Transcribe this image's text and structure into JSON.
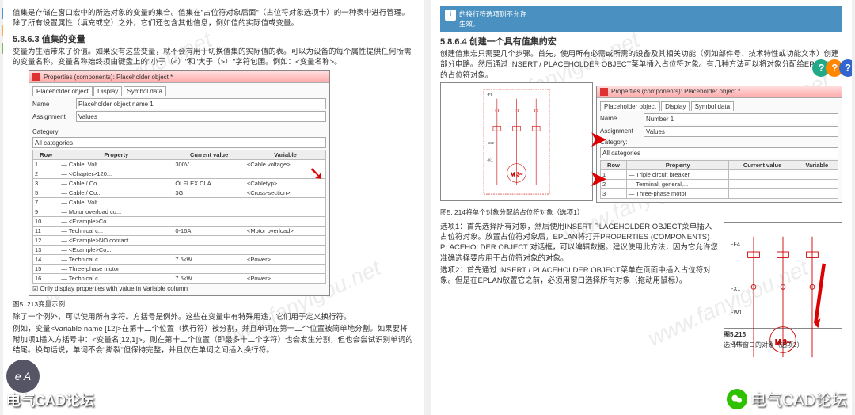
{
  "left": {
    "intro": "值集是存储在窗口宏中的所选对象的变量的集合。值集在\"占位符对象后面\"（占位符对象选项卡）的一种表中进行管理。除了所有设置属性（填充或空）之外，它们还包含其他信息，例如值的实际值或变量。",
    "h1": "5.8.6.3 值集的变量",
    "p1": "变量为生活带来了价值。如果没有这些变量，就不会有用于切换值集的实际值的表。可以为设备的每个属性提供任何所需的变量名称。变量名称始终须由键盘上的\"小于（<）\"和\"大于（>）\"字符包围。例如：<变量名称>。",
    "dlg": {
      "title": "Properties (components): Placeholder object *",
      "tabs": [
        "Placeholder object",
        "Display",
        "Symbol data"
      ],
      "nameLabel": "Name",
      "nameVal": "Placeholder object name 1",
      "assignLabel": "Assignment",
      "assignVal": "Values",
      "catLabel": "Category:",
      "catVal": "All categories",
      "cols": [
        "Row",
        "Property",
        "Current value",
        "Variable"
      ],
      "rows": [
        [
          "1",
          "— Cable: Volt...",
          "300V",
          "<Cable voltage>"
        ],
        [
          "2",
          "— <Chapter>120...",
          "",
          ""
        ],
        [
          "3",
          "— Cable / Co...",
          "ÖLFLEX CLA...",
          "<Cabletyp>"
        ],
        [
          "5",
          "— Cable / Co...",
          "3G",
          "<Cross-section>"
        ],
        [
          "7",
          "— Cable: Volt...",
          "",
          ""
        ],
        [
          "9",
          "— Motor overload cu...",
          "",
          ""
        ],
        [
          "10",
          "— <Example>Co...",
          "",
          ""
        ],
        [
          "11",
          "— Technical c...",
          "0-16A",
          "<Motor overload>"
        ],
        [
          "12",
          "— <Example>NO contact",
          "",
          ""
        ],
        [
          "13",
          "— <Example>Co...",
          "",
          ""
        ],
        [
          "14",
          "— Technical c...",
          "7.5kW",
          "<Power>"
        ],
        [
          "15",
          "— Three-phase motor",
          "",
          ""
        ],
        [
          "16",
          "— Technical c...",
          "7.5kW",
          "<Power>"
        ]
      ],
      "chk": "Only display properties with value in Variable column"
    },
    "cap1": "图5. 213变量示例",
    "p2": "除了一个例外，可以使用所有字符。方括号是例外。这些在变量中有特殊用途，它们用于定义换行符。",
    "p3": "例如，变量<Variable name [12]>在第十二个位置（换行符）被分割，并且单词在第十二个位置被简单地分割。如果要将附加项1插入方括号中：<变量名[12,1]>，则在第十二个位置（即最多十二个字符）也会发生分割，但也会尝试识别单词的结尾。换句话说，单词不会\"撕裂\"但保持完整，并且仅在单词之间插入换行符。"
  },
  "right": {
    "info": "的换行符选项则不允许\n生效。",
    "h1": "5.8.6.4 创建一个具有值集的宏",
    "p1": "创建值集宏只需要几个步骤。首先，使用所有必需或所需的设备及其相关功能（例如部件号、技术特性或功能文本）创建部分电路。然后通过 INSERT / PLACEHOLDER OBJECT菜单插入占位符对象。有几种方法可以将对象分配给EPLAN中的占位符对象。",
    "dlg": {
      "title": "Properties (components): Placeholder object *",
      "tabs": [
        "Placeholder object",
        "Display",
        "Symbol data"
      ],
      "nameLabel": "Name",
      "nameVal": "Number 1",
      "assignLabel": "Assignment",
      "assignVal": "Values",
      "catLabel": "Category:",
      "catVal": "All categories",
      "cols": [
        "Row",
        "Property",
        "Current value",
        "Variable"
      ],
      "rows": [
        [
          "1",
          "— Triple circuit breaker",
          "",
          ""
        ],
        [
          "2",
          "— Terminal, general,...",
          "",
          ""
        ],
        [
          "3",
          "— Three-phase motor",
          "",
          ""
        ]
      ]
    },
    "cap1": "图5. 214将单个对象分配给占位符对象（选项1）",
    "opt1": "选项1：首先选择所有对象，然后使用INSERT PLACEHOLDER OBJECT菜单插入占位符对象。放置占位符对象后，EPLAN将打开PROPERTIES (COMPONENTS) PLACEHOLDER OBJECT 对话框，可以编辑数据。建议使用此方法，因为它允许您准确选择要应用于占位符对象的对象。",
    "opt2": "选项2：首先通过 INSERT / PLACEHOLDER OBJECT菜单在页面中插入占位符对象。但是在EPLAN放置它之前，必须用窗口选择所有对象（拖动用鼠标）。",
    "figRight": {
      "cap": "图5.215",
      "sub": "选择带窗口的对象（选项2）"
    }
  },
  "watermark": "www.fanyigou.net",
  "bottom": {
    "left": "电气CAD论坛",
    "right": "电气CAD论坛",
    "ea": "e A"
  },
  "help": {
    "q": "?",
    "colors": [
      "#2a8",
      "#f80",
      "#36c"
    ]
  }
}
